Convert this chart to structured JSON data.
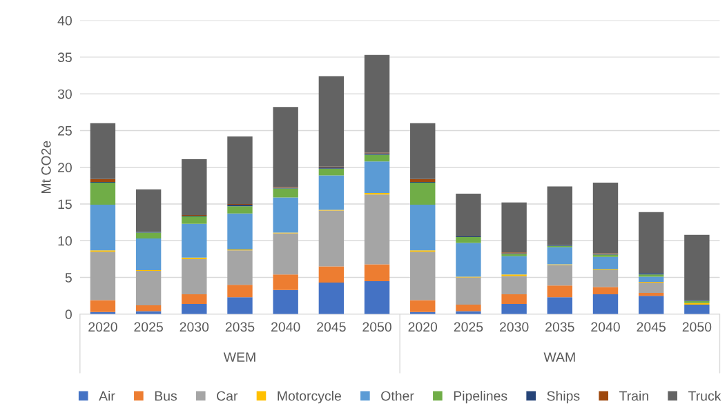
{
  "chart_data": {
    "type": "bar",
    "stacked": true,
    "ylabel": "Mt CO2e",
    "categories": [
      "2020",
      "2025",
      "2030",
      "2035",
      "2040",
      "2045",
      "2050",
      "2020",
      "2025",
      "2030",
      "2035",
      "2040",
      "2045",
      "2050"
    ],
    "series": [
      {
        "name": "Air",
        "color": "#4472c4",
        "values": [
          0.3,
          0.4,
          1.4,
          2.3,
          3.3,
          4.3,
          4.5,
          0.3,
          0.4,
          1.4,
          2.3,
          2.7,
          2.5,
          1.3
        ]
      },
      {
        "name": "Bus",
        "color": "#ed7d31",
        "values": [
          1.6,
          0.8,
          1.3,
          1.7,
          2.1,
          2.2,
          2.3,
          1.6,
          0.9,
          1.3,
          1.6,
          1.0,
          0.4,
          0
        ]
      },
      {
        "name": "Car",
        "color": "#a5a5a5",
        "values": [
          6.6,
          4.7,
          4.8,
          4.7,
          5.6,
          7.6,
          9.5,
          6.6,
          3.7,
          2.5,
          2.8,
          2.3,
          1.4,
          0
        ]
      },
      {
        "name": "Motorcycle",
        "color": "#ffc000",
        "values": [
          0.2,
          0.1,
          0.2,
          0.1,
          0.1,
          0.1,
          0.2,
          0.2,
          0.1,
          0.2,
          0.1,
          0.1,
          0.1,
          0.2
        ]
      },
      {
        "name": "Other",
        "color": "#5b9bd5",
        "values": [
          6.2,
          4.3,
          4.6,
          4.9,
          4.8,
          4.7,
          4.3,
          6.2,
          4.6,
          2.5,
          2.3,
          1.7,
          0.7,
          0
        ]
      },
      {
        "name": "Pipelines",
        "color": "#70ad47",
        "values": [
          3.0,
          0.8,
          1.0,
          1.0,
          1.2,
          0.9,
          0.9,
          3.0,
          0.8,
          0.3,
          0.2,
          0.3,
          0.3,
          0.3
        ]
      },
      {
        "name": "Ships",
        "color": "#264478",
        "values": [
          0.1,
          0.1,
          0.1,
          0.2,
          0.1,
          0.2,
          0.2,
          0.1,
          0.1,
          0.1,
          0.1,
          0.1,
          0.2,
          0.1
        ]
      },
      {
        "name": "Train",
        "color": "#9e480e",
        "values": [
          0.4,
          0,
          0.1,
          0.1,
          0.1,
          0.1,
          0.1,
          0.4,
          0,
          0.1,
          0,
          0.1,
          0,
          0
        ]
      },
      {
        "name": "Truck",
        "color": "#636363",
        "values": [
          7.6,
          5.8,
          7.6,
          9.2,
          10.9,
          12.3,
          13.3,
          7.6,
          5.8,
          6.8,
          8.0,
          9.6,
          8.3,
          8.9
        ]
      }
    ],
    "annotations": [
      "WEM",
      "WAM"
    ],
    "ylim": [
      0,
      40
    ],
    "yticks": [
      0,
      5,
      10,
      15,
      20,
      25,
      30,
      35,
      40
    ],
    "grid": "y",
    "legend": "bottom"
  }
}
